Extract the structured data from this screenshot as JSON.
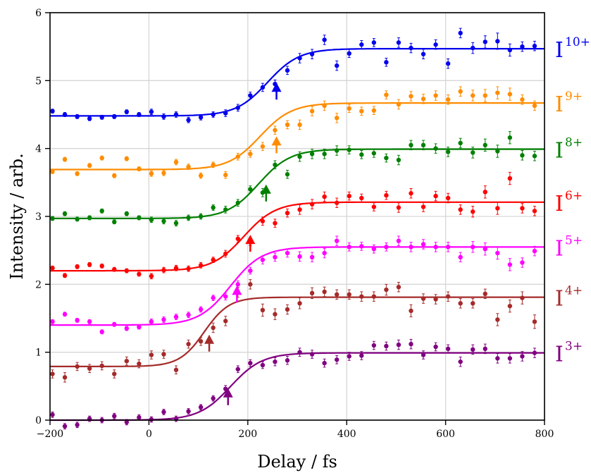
{
  "chart_data": {
    "type": "scatter",
    "title": "",
    "xlabel": "Delay / fs",
    "ylabel": "Intensity / arb.",
    "xlim": [
      -200,
      800
    ],
    "ylim": [
      0,
      6
    ],
    "xticks": [
      -200,
      0,
      200,
      400,
      600,
      800
    ],
    "yticks": [
      0,
      1,
      2,
      3,
      4,
      5,
      6
    ],
    "grid": true,
    "legend": "right side labels",
    "series": [
      {
        "name": "I",
        "charge": "10+",
        "color": "#0000ee",
        "fit": {
          "low": 4.48,
          "high": 5.47,
          "t0": 240,
          "width": 32
        },
        "arrow": {
          "x": 258,
          "y": 4.72
        },
        "x": [
          -195,
          -170,
          -145,
          -120,
          -95,
          -70,
          -45,
          -20,
          5,
          30,
          55,
          80,
          105,
          130,
          155,
          180,
          205,
          230,
          255,
          280,
          305,
          330,
          355,
          380,
          405,
          430,
          455,
          480,
          505,
          530,
          555,
          580,
          605,
          630,
          655,
          680,
          705,
          730,
          755,
          780
        ],
        "y": [
          4.55,
          4.5,
          4.47,
          4.44,
          4.46,
          4.47,
          4.54,
          4.5,
          4.54,
          4.47,
          4.5,
          4.42,
          4.46,
          4.5,
          4.52,
          4.6,
          4.78,
          4.9,
          4.95,
          5.15,
          5.33,
          5.39,
          5.6,
          5.22,
          5.4,
          5.53,
          5.56,
          5.27,
          5.56,
          5.48,
          5.39,
          5.53,
          5.25,
          5.7,
          5.48,
          5.57,
          5.58,
          5.45,
          5.5,
          5.51
        ],
        "err": [
          0.03,
          0.03,
          0.03,
          0.03,
          0.03,
          0.03,
          0.03,
          0.03,
          0.04,
          0.04,
          0.04,
          0.04,
          0.04,
          0.04,
          0.05,
          0.05,
          0.05,
          0.06,
          0.06,
          0.06,
          0.07,
          0.07,
          0.07,
          0.07,
          0.06,
          0.06,
          0.06,
          0.06,
          0.07,
          0.07,
          0.07,
          0.07,
          0.07,
          0.07,
          0.08,
          0.09,
          0.12,
          0.09,
          0.07,
          0.07
        ]
      },
      {
        "name": "I",
        "charge": "9+",
        "color": "#ff8c00",
        "fit": {
          "low": 3.69,
          "high": 4.67,
          "t0": 225,
          "width": 32
        },
        "arrow": {
          "x": 258,
          "y": 3.93
        },
        "x": [
          -195,
          -170,
          -145,
          -120,
          -95,
          -70,
          -45,
          -20,
          5,
          30,
          55,
          80,
          105,
          130,
          155,
          180,
          205,
          230,
          255,
          280,
          305,
          330,
          355,
          380,
          405,
          430,
          455,
          480,
          505,
          530,
          555,
          580,
          605,
          630,
          655,
          680,
          705,
          730,
          755,
          780
        ],
        "y": [
          3.66,
          3.84,
          3.63,
          3.75,
          3.86,
          3.6,
          3.85,
          3.7,
          3.63,
          3.64,
          3.8,
          3.73,
          3.6,
          3.76,
          3.61,
          3.88,
          3.92,
          4.03,
          4.27,
          4.35,
          4.35,
          4.55,
          4.63,
          4.45,
          4.59,
          4.55,
          4.56,
          4.79,
          4.65,
          4.77,
          4.73,
          4.78,
          4.72,
          4.84,
          4.78,
          4.78,
          4.82,
          4.8,
          4.72,
          4.63
        ],
        "err": [
          0.03,
          0.03,
          0.03,
          0.03,
          0.03,
          0.03,
          0.03,
          0.03,
          0.04,
          0.04,
          0.04,
          0.04,
          0.04,
          0.04,
          0.05,
          0.05,
          0.05,
          0.06,
          0.06,
          0.06,
          0.07,
          0.07,
          0.07,
          0.07,
          0.06,
          0.06,
          0.06,
          0.06,
          0.07,
          0.07,
          0.07,
          0.07,
          0.07,
          0.07,
          0.08,
          0.09,
          0.09,
          0.09,
          0.07,
          0.07
        ]
      },
      {
        "name": "I",
        "charge": "8+",
        "color": "#008000",
        "fit": {
          "low": 2.97,
          "high": 3.99,
          "t0": 222,
          "width": 32
        },
        "arrow": {
          "x": 237,
          "y": 3.22
        },
        "x": [
          -195,
          -170,
          -145,
          -120,
          -95,
          -70,
          -45,
          -20,
          5,
          30,
          55,
          80,
          105,
          130,
          155,
          180,
          205,
          230,
          255,
          280,
          305,
          330,
          355,
          380,
          405,
          430,
          455,
          480,
          505,
          530,
          555,
          580,
          605,
          630,
          655,
          680,
          705,
          730,
          755,
          780
        ],
        "y": [
          2.97,
          3.04,
          2.96,
          2.98,
          3.08,
          2.92,
          3.04,
          2.98,
          2.95,
          2.93,
          2.9,
          2.98,
          3.0,
          3.13,
          3.1,
          3.2,
          3.4,
          3.35,
          3.76,
          3.62,
          3.88,
          3.92,
          3.92,
          3.97,
          3.98,
          3.91,
          3.93,
          3.86,
          3.83,
          4.05,
          4.05,
          4.0,
          3.95,
          4.08,
          3.94,
          4.05,
          3.96,
          4.16,
          3.9,
          3.89
        ],
        "err": [
          0.03,
          0.03,
          0.03,
          0.03,
          0.03,
          0.03,
          0.03,
          0.03,
          0.04,
          0.04,
          0.04,
          0.04,
          0.04,
          0.04,
          0.05,
          0.05,
          0.05,
          0.06,
          0.06,
          0.06,
          0.07,
          0.07,
          0.07,
          0.07,
          0.06,
          0.06,
          0.06,
          0.06,
          0.07,
          0.07,
          0.07,
          0.07,
          0.07,
          0.07,
          0.08,
          0.09,
          0.09,
          0.09,
          0.07,
          0.07
        ]
      },
      {
        "name": "I",
        "charge": "6+",
        "color": "#ff0000",
        "fit": {
          "low": 2.2,
          "high": 3.21,
          "t0": 192,
          "width": 32
        },
        "arrow": {
          "x": 205,
          "y": 2.48
        },
        "x": [
          -195,
          -170,
          -145,
          -120,
          -95,
          -70,
          -45,
          -20,
          5,
          30,
          55,
          80,
          105,
          130,
          155,
          180,
          205,
          230,
          255,
          280,
          305,
          330,
          355,
          380,
          405,
          430,
          455,
          480,
          505,
          530,
          555,
          580,
          605,
          630,
          655,
          680,
          705,
          730,
          755,
          780
        ],
        "y": [
          2.24,
          2.13,
          2.26,
          2.29,
          2.27,
          2.22,
          2.2,
          2.15,
          2.12,
          2.21,
          2.24,
          2.23,
          2.28,
          2.36,
          2.45,
          2.67,
          2.62,
          2.93,
          2.9,
          3.05,
          3.1,
          3.18,
          3.29,
          3.2,
          3.3,
          3.27,
          3.14,
          3.31,
          3.13,
          3.34,
          3.14,
          3.3,
          3.27,
          3.1,
          3.07,
          3.36,
          3.12,
          3.56,
          3.12,
          3.08
        ],
        "err": [
          0.03,
          0.03,
          0.03,
          0.03,
          0.03,
          0.03,
          0.03,
          0.03,
          0.04,
          0.04,
          0.04,
          0.04,
          0.04,
          0.04,
          0.05,
          0.05,
          0.05,
          0.06,
          0.06,
          0.06,
          0.07,
          0.07,
          0.07,
          0.07,
          0.06,
          0.06,
          0.06,
          0.06,
          0.07,
          0.07,
          0.07,
          0.07,
          0.07,
          0.07,
          0.08,
          0.09,
          0.09,
          0.09,
          0.07,
          0.07
        ]
      },
      {
        "name": "I",
        "charge": "5+",
        "color": "#ff00ff",
        "fit": {
          "low": 1.4,
          "high": 2.55,
          "t0": 165,
          "width": 32
        },
        "arrow": {
          "x": 178,
          "y": 1.73
        },
        "x": [
          -195,
          -170,
          -145,
          -120,
          -95,
          -70,
          -45,
          -20,
          5,
          30,
          55,
          80,
          105,
          130,
          155,
          180,
          205,
          230,
          255,
          280,
          305,
          330,
          355,
          380,
          405,
          430,
          455,
          480,
          505,
          530,
          555,
          580,
          605,
          630,
          655,
          680,
          705,
          730,
          755,
          780
        ],
        "y": [
          1.45,
          1.56,
          1.47,
          1.45,
          1.3,
          1.41,
          1.35,
          1.37,
          1.45,
          1.48,
          1.52,
          1.55,
          1.63,
          1.8,
          1.82,
          2.0,
          2.2,
          2.36,
          2.4,
          2.46,
          2.41,
          2.4,
          2.46,
          2.64,
          2.55,
          2.56,
          2.52,
          2.55,
          2.64,
          2.55,
          2.59,
          2.55,
          2.55,
          2.4,
          2.55,
          2.52,
          2.46,
          2.29,
          2.32,
          2.49
        ],
        "err": [
          0.03,
          0.03,
          0.03,
          0.03,
          0.03,
          0.03,
          0.03,
          0.03,
          0.04,
          0.04,
          0.04,
          0.04,
          0.04,
          0.04,
          0.05,
          0.05,
          0.05,
          0.06,
          0.06,
          0.06,
          0.07,
          0.07,
          0.07,
          0.07,
          0.06,
          0.06,
          0.06,
          0.06,
          0.07,
          0.07,
          0.07,
          0.07,
          0.07,
          0.07,
          0.08,
          0.09,
          0.09,
          0.09,
          0.07,
          0.07
        ]
      },
      {
        "name": "I",
        "charge": "4+",
        "color": "#a52a2a",
        "fit": {
          "low": 0.79,
          "high": 1.81,
          "t0": 112,
          "width": 25
        },
        "arrow": {
          "x": 122,
          "y": 1.01
        },
        "x": [
          -195,
          -170,
          -145,
          -120,
          -95,
          -70,
          -45,
          -20,
          5,
          30,
          55,
          80,
          105,
          130,
          155,
          180,
          205,
          230,
          255,
          280,
          305,
          330,
          355,
          380,
          405,
          430,
          455,
          480,
          505,
          530,
          555,
          580,
          605,
          630,
          655,
          680,
          705,
          730,
          755,
          780
        ],
        "y": [
          0.68,
          0.63,
          0.79,
          0.76,
          0.8,
          0.68,
          0.87,
          0.83,
          0.96,
          0.97,
          0.74,
          1.12,
          1.16,
          1.36,
          1.46,
          1.88,
          2.0,
          1.62,
          1.56,
          1.63,
          1.72,
          1.87,
          1.89,
          1.85,
          1.85,
          1.82,
          1.82,
          1.92,
          1.96,
          1.61,
          1.79,
          1.78,
          1.82,
          1.72,
          1.72,
          1.86,
          1.48,
          1.68,
          1.8,
          1.45
        ],
        "err": [
          0.06,
          0.07,
          0.06,
          0.06,
          0.06,
          0.06,
          0.06,
          0.06,
          0.06,
          0.06,
          0.06,
          0.06,
          0.06,
          0.07,
          0.07,
          0.07,
          0.07,
          0.09,
          0.08,
          0.07,
          0.08,
          0.08,
          0.07,
          0.07,
          0.07,
          0.07,
          0.07,
          0.08,
          0.07,
          0.09,
          0.07,
          0.07,
          0.07,
          0.07,
          0.07,
          0.07,
          0.09,
          0.09,
          0.09,
          0.1
        ]
      },
      {
        "name": "I",
        "charge": "3+",
        "color": "#800080",
        "fit": {
          "low": 0.0,
          "high": 0.99,
          "t0": 165,
          "width": 32
        },
        "arrow": {
          "x": 160,
          "y": 0.22
        },
        "x": [
          -195,
          -170,
          -145,
          -120,
          -95,
          -70,
          -45,
          -20,
          5,
          30,
          55,
          80,
          105,
          130,
          155,
          180,
          205,
          230,
          255,
          280,
          305,
          330,
          355,
          380,
          405,
          430,
          455,
          480,
          505,
          530,
          555,
          580,
          605,
          630,
          655,
          680,
          705,
          730,
          755,
          780
        ],
        "y": [
          0.08,
          -0.09,
          -0.07,
          0.02,
          0.0,
          0.06,
          -0.03,
          0.04,
          0.01,
          0.12,
          0.02,
          0.13,
          0.19,
          0.32,
          0.46,
          0.75,
          0.84,
          0.81,
          0.86,
          0.88,
          1.0,
          0.97,
          0.84,
          0.89,
          0.94,
          0.95,
          1.1,
          1.09,
          1.11,
          1.12,
          0.96,
          1.08,
          1.05,
          0.86,
          1.04,
          1.05,
          0.91,
          0.91,
          0.94,
          0.99
        ],
        "err": [
          0.04,
          0.04,
          0.04,
          0.04,
          0.04,
          0.04,
          0.04,
          0.04,
          0.04,
          0.04,
          0.04,
          0.04,
          0.04,
          0.04,
          0.05,
          0.05,
          0.05,
          0.05,
          0.06,
          0.06,
          0.06,
          0.06,
          0.06,
          0.06,
          0.06,
          0.06,
          0.06,
          0.06,
          0.07,
          0.07,
          0.06,
          0.06,
          0.06,
          0.07,
          0.07,
          0.07,
          0.07,
          0.07,
          0.07,
          0.07
        ]
      }
    ]
  }
}
